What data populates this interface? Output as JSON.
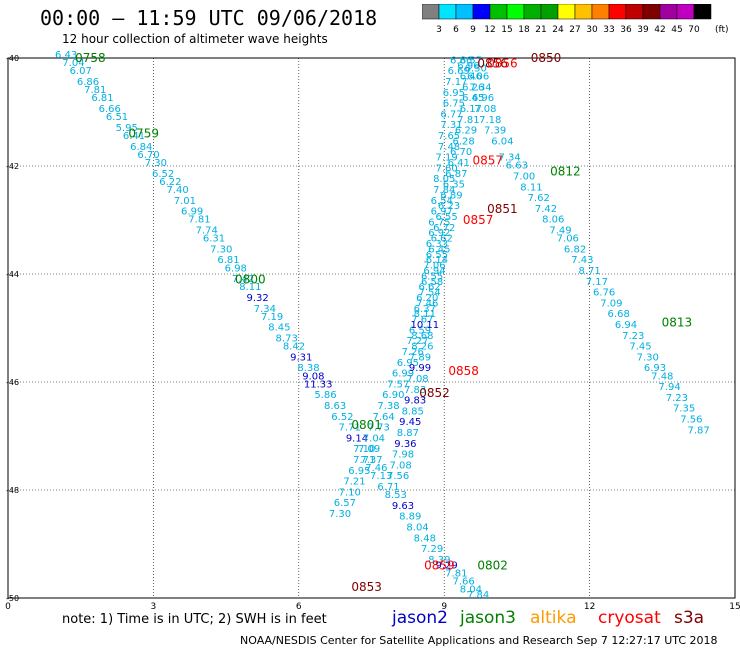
{
  "title": "00:00 – 11:59 UTC 09/06/2018",
  "subtitle": "12 hour collection of altimeter wave heights",
  "note": "note: 1) Time is in UTC; 2) SWH is in feet",
  "credit": "NOAA/NESDIS Center for Satellite Applications and Research   Sep  7 12:27:17 UTC 2018",
  "satellites": [
    {
      "name": "jason2",
      "color": "#0000cc"
    },
    {
      "name": "jason3",
      "color": "#008000"
    },
    {
      "name": "altika",
      "color": "#ff9900"
    },
    {
      "name": "cryosat",
      "color": "#ff0000"
    },
    {
      "name": "s3a",
      "color": "#800000"
    }
  ],
  "legend": {
    "unit": "(ft)",
    "ticks": [
      "3",
      "6",
      "9",
      "12",
      "15",
      "18",
      "21",
      "24",
      "27",
      "30",
      "33",
      "36",
      "39",
      "42",
      "45",
      "70"
    ],
    "colors": [
      "#808080",
      "#00e5ff",
      "#00c0ff",
      "#0000ff",
      "#00c000",
      "#00ff00",
      "#00b000",
      "#00a000",
      "#ffff00",
      "#ffc000",
      "#ff8000",
      "#ff0000",
      "#c00000",
      "#800000",
      "#a000a0",
      "#c000c0",
      "#000000"
    ]
  },
  "axes": {
    "x_ticks": [
      "0",
      "3",
      "6",
      "9",
      "12",
      "15"
    ],
    "y_ticks": [
      "-40",
      "-42",
      "-44",
      "-46",
      "-48",
      "-50"
    ],
    "xlim": [
      0,
      15
    ],
    "ylim": [
      -50,
      -40
    ]
  },
  "time_labels": [
    {
      "text": "0758",
      "sat": "jason3",
      "lon": 1.7,
      "lat": -40.0
    },
    {
      "text": "0759",
      "sat": "jason3",
      "lon": 2.8,
      "lat": -41.4
    },
    {
      "text": "0800",
      "sat": "jason3",
      "lon": 5.0,
      "lat": -44.1
    },
    {
      "text": "0801",
      "sat": "jason3",
      "lon": 7.4,
      "lat": -46.8
    },
    {
      "text": "0802",
      "sat": "jason3",
      "lon": 10.0,
      "lat": -49.4
    },
    {
      "text": "0812",
      "sat": "jason3",
      "lon": 11.5,
      "lat": -42.1
    },
    {
      "text": "0813",
      "sat": "jason3",
      "lon": 13.8,
      "lat": -44.9
    },
    {
      "text": "0850",
      "sat": "s3a",
      "lon": 11.1,
      "lat": -40.0
    },
    {
      "text": "0856",
      "sat": "s3a",
      "lon": 10.0,
      "lat": -40.1
    },
    {
      "text": "0851",
      "sat": "s3a",
      "lon": 10.2,
      "lat": -42.8
    },
    {
      "text": "0852",
      "sat": "s3a",
      "lon": 8.8,
      "lat": -46.2
    },
    {
      "text": "0853",
      "sat": "s3a",
      "lon": 7.4,
      "lat": -49.8
    },
    {
      "text": "0856",
      "sat": "cryosat",
      "lon": 10.2,
      "lat": -40.1
    },
    {
      "text": "0857",
      "sat": "cryosat",
      "lon": 9.9,
      "lat": -41.9
    },
    {
      "text": "0857",
      "sat": "cryosat",
      "lon": 9.7,
      "lat": -43.0
    },
    {
      "text": "0858",
      "sat": "cryosat",
      "lon": 9.4,
      "lat": -45.8
    },
    {
      "text": "0859",
      "sat": "cryosat",
      "lon": 8.9,
      "lat": -49.4
    }
  ],
  "observations": [
    {
      "sat": "jason3",
      "points": [
        {
          "lon": 1.2,
          "lat": -40.0,
          "v": "6.43"
        },
        {
          "lon": 1.35,
          "lat": -40.15,
          "v": "7.04"
        },
        {
          "lon": 1.5,
          "lat": -40.3,
          "v": "6.07"
        },
        {
          "lon": 1.65,
          "lat": -40.5,
          "v": "6.86"
        },
        {
          "lon": 1.8,
          "lat": -40.65,
          "v": "7.81"
        },
        {
          "lon": 1.95,
          "lat": -40.8,
          "v": "6.81"
        },
        {
          "lon": 2.1,
          "lat": -41.0,
          "v": "6.66"
        },
        {
          "lon": 2.25,
          "lat": -41.15,
          "v": "6.51"
        },
        {
          "lon": 2.45,
          "lat": -41.35,
          "v": "5.95"
        },
        {
          "lon": 2.6,
          "lat": -41.5,
          "v": "6.41"
        },
        {
          "lon": 2.75,
          "lat": -41.7,
          "v": "6.84"
        },
        {
          "lon": 2.9,
          "lat": -41.85,
          "v": "6.70"
        },
        {
          "lon": 3.05,
          "lat": -42.0,
          "v": "7.30"
        },
        {
          "lon": 3.2,
          "lat": -42.2,
          "v": "6.52"
        },
        {
          "lon": 3.35,
          "lat": -42.35,
          "v": "6.22"
        },
        {
          "lon": 3.5,
          "lat": -42.5,
          "v": "7.40"
        },
        {
          "lon": 3.65,
          "lat": -42.7,
          "v": "7.01"
        },
        {
          "lon": 3.8,
          "lat": -42.9,
          "v": "6.99"
        },
        {
          "lon": 3.95,
          "lat": -43.05,
          "v": "7.81"
        },
        {
          "lon": 4.1,
          "lat": -43.25,
          "v": "7.74"
        },
        {
          "lon": 4.25,
          "lat": -43.4,
          "v": "6.31"
        },
        {
          "lon": 4.4,
          "lat": -43.6,
          "v": "7.30"
        },
        {
          "lon": 4.55,
          "lat": -43.8,
          "v": "6.81"
        },
        {
          "lon": 4.7,
          "lat": -43.95,
          "v": "6.98"
        },
        {
          "lon": 4.85,
          "lat": -44.15,
          "v": "7.42"
        },
        {
          "lon": 5.0,
          "lat": -44.3,
          "v": "8.11"
        },
        {
          "lon": 5.15,
          "lat": -44.5,
          "v": "9.32"
        },
        {
          "lon": 5.3,
          "lat": -44.7,
          "v": "7.34"
        },
        {
          "lon": 5.45,
          "lat": -44.85,
          "v": "7.19"
        },
        {
          "lon": 5.6,
          "lat": -45.05,
          "v": "8.45"
        },
        {
          "lon": 5.75,
          "lat": -45.25,
          "v": "8.73"
        },
        {
          "lon": 5.9,
          "lat": -45.4,
          "v": "8.42"
        },
        {
          "lon": 6.05,
          "lat": -45.6,
          "v": "9.31"
        },
        {
          "lon": 6.2,
          "lat": -45.8,
          "v": "8.38"
        },
        {
          "lon": 6.3,
          "lat": -45.95,
          "v": "9.08"
        },
        {
          "lon": 6.4,
          "lat": -46.1,
          "v": "11.33"
        },
        {
          "lon": 6.55,
          "lat": -46.3,
          "v": "5.86"
        },
        {
          "lon": 6.75,
          "lat": -46.5,
          "v": "8.63"
        },
        {
          "lon": 6.9,
          "lat": -46.7,
          "v": "6.52"
        },
        {
          "lon": 7.05,
          "lat": -46.9,
          "v": "7.71"
        },
        {
          "lon": 7.2,
          "lat": -47.1,
          "v": "9.14"
        },
        {
          "lon": 7.35,
          "lat": -47.3,
          "v": "7.10"
        },
        {
          "lon": 7.5,
          "lat": -47.5,
          "v": "7.37"
        },
        {
          "lon": 7.6,
          "lat": -47.65,
          "v": "7.46"
        },
        {
          "lon": 7.7,
          "lat": -47.8,
          "v": "7.13"
        },
        {
          "lon": 7.85,
          "lat": -48.0,
          "v": "6.71"
        },
        {
          "lon": 8.0,
          "lat": -48.15,
          "v": "8.53"
        },
        {
          "lon": 8.15,
          "lat": -48.35,
          "v": "9.63"
        },
        {
          "lon": 8.3,
          "lat": -48.55,
          "v": "8.89"
        },
        {
          "lon": 8.45,
          "lat": -48.75,
          "v": "8.04"
        },
        {
          "lon": 8.6,
          "lat": -48.95,
          "v": "8.48"
        },
        {
          "lon": 8.75,
          "lat": -49.15,
          "v": "7.29"
        },
        {
          "lon": 8.9,
          "lat": -49.35,
          "v": "8.39"
        },
        {
          "lon": 9.05,
          "lat": -49.45,
          "v": "9.29"
        },
        {
          "lon": 9.25,
          "lat": -49.6,
          "v": "7.81"
        },
        {
          "lon": 9.4,
          "lat": -49.75,
          "v": "7.66"
        },
        {
          "lon": 9.55,
          "lat": -49.9,
          "v": "8.04"
        },
        {
          "lon": 9.7,
          "lat": -50.0,
          "v": "7.84"
        }
      ]
    },
    {
      "sat": "jason3",
      "points": [
        {
          "lon": 9.55,
          "lat": -40.1,
          "v": "6.57"
        },
        {
          "lon": 9.65,
          "lat": -40.25,
          "v": "6.50"
        },
        {
          "lon": 9.7,
          "lat": -40.4,
          "v": "6.06"
        },
        {
          "lon": 9.75,
          "lat": -40.6,
          "v": "7.34"
        },
        {
          "lon": 9.8,
          "lat": -40.8,
          "v": "6.96"
        },
        {
          "lon": 9.85,
          "lat": -41.0,
          "v": "7.08"
        },
        {
          "lon": 9.95,
          "lat": -41.2,
          "v": "7.18"
        },
        {
          "lon": 10.05,
          "lat": -41.4,
          "v": "7.39"
        },
        {
          "lon": 10.2,
          "lat": -41.6,
          "v": "6.04"
        },
        {
          "lon": 10.35,
          "lat": -41.9,
          "v": "7.34"
        },
        {
          "lon": 10.5,
          "lat": -42.05,
          "v": "6.63"
        },
        {
          "lon": 10.65,
          "lat": -42.25,
          "v": "7.00"
        },
        {
          "lon": 10.8,
          "lat": -42.45,
          "v": "8.11"
        },
        {
          "lon": 10.95,
          "lat": -42.65,
          "v": "7.62"
        },
        {
          "lon": 11.1,
          "lat": -42.85,
          "v": "7.42"
        },
        {
          "lon": 11.25,
          "lat": -43.05,
          "v": "8.06"
        },
        {
          "lon": 11.4,
          "lat": -43.25,
          "v": "7.49"
        },
        {
          "lon": 11.55,
          "lat": -43.4,
          "v": "7.06"
        },
        {
          "lon": 11.7,
          "lat": -43.6,
          "v": "6.82"
        },
        {
          "lon": 11.85,
          "lat": -43.8,
          "v": "7.43"
        },
        {
          "lon": 12.0,
          "lat": -44.0,
          "v": "8.71"
        },
        {
          "lon": 12.15,
          "lat": -44.2,
          "v": "7.17"
        },
        {
          "lon": 12.3,
          "lat": -44.4,
          "v": "6.76"
        },
        {
          "lon": 12.45,
          "lat": -44.6,
          "v": "7.09"
        },
        {
          "lon": 12.6,
          "lat": -44.8,
          "v": "6.68"
        },
        {
          "lon": 12.75,
          "lat": -45.0,
          "v": "6.94"
        },
        {
          "lon": 12.9,
          "lat": -45.2,
          "v": "7.23"
        },
        {
          "lon": 13.05,
          "lat": -45.4,
          "v": "7.45"
        },
        {
          "lon": 13.2,
          "lat": -45.6,
          "v": "7.30"
        },
        {
          "lon": 13.35,
          "lat": -45.8,
          "v": "6.93"
        },
        {
          "lon": 13.5,
          "lat": -45.95,
          "v": "7.48"
        },
        {
          "lon": 13.65,
          "lat": -46.15,
          "v": "7.94"
        },
        {
          "lon": 13.8,
          "lat": -46.35,
          "v": "7.23"
        },
        {
          "lon": 13.95,
          "lat": -46.55,
          "v": "7.35"
        },
        {
          "lon": 14.1,
          "lat": -46.75,
          "v": "7.56"
        },
        {
          "lon": 14.25,
          "lat": -46.95,
          "v": "7.87"
        }
      ]
    },
    {
      "sat": "s3a",
      "points": [
        {
          "lon": 9.35,
          "lat": -40.1,
          "v": "6.86"
        },
        {
          "lon": 9.3,
          "lat": -40.3,
          "v": "6.69"
        },
        {
          "lon": 9.25,
          "lat": -40.5,
          "v": "7.17"
        },
        {
          "lon": 9.2,
          "lat": -40.7,
          "v": "6.95"
        },
        {
          "lon": 9.2,
          "lat": -40.9,
          "v": "6.75"
        },
        {
          "lon": 9.15,
          "lat": -41.1,
          "v": "6.77"
        },
        {
          "lon": 9.15,
          "lat": -41.3,
          "v": "7.31"
        },
        {
          "lon": 9.1,
          "lat": -41.5,
          "v": "7.65"
        },
        {
          "lon": 9.1,
          "lat": -41.7,
          "v": "7.48"
        },
        {
          "lon": 9.05,
          "lat": -41.9,
          "v": "7.19"
        },
        {
          "lon": 9.05,
          "lat": -42.1,
          "v": "7.60"
        },
        {
          "lon": 9.0,
          "lat": -42.3,
          "v": "8.05"
        },
        {
          "lon": 9.0,
          "lat": -42.5,
          "v": "7.84"
        },
        {
          "lon": 8.95,
          "lat": -42.7,
          "v": "6.54"
        },
        {
          "lon": 8.95,
          "lat": -42.9,
          "v": "6.97"
        },
        {
          "lon": 8.9,
          "lat": -43.1,
          "v": "6.75"
        },
        {
          "lon": 8.9,
          "lat": -43.3,
          "v": "6.92"
        },
        {
          "lon": 8.85,
          "lat": -43.5,
          "v": "6.33"
        },
        {
          "lon": 8.85,
          "lat": -43.7,
          "v": "6.55"
        },
        {
          "lon": 8.8,
          "lat": -43.9,
          "v": "7.06"
        },
        {
          "lon": 8.75,
          "lat": -44.1,
          "v": "6.55"
        },
        {
          "lon": 8.7,
          "lat": -44.3,
          "v": "6.62"
        },
        {
          "lon": 8.65,
          "lat": -44.5,
          "v": "6.20"
        },
        {
          "lon": 8.6,
          "lat": -44.7,
          "v": "6.37"
        },
        {
          "lon": 8.55,
          "lat": -44.9,
          "v": "7.67"
        },
        {
          "lon": 8.5,
          "lat": -45.1,
          "v": "6.59"
        },
        {
          "lon": 8.45,
          "lat": -45.3,
          "v": "7.27"
        },
        {
          "lon": 8.35,
          "lat": -45.5,
          "v": "7.26"
        },
        {
          "lon": 8.25,
          "lat": -45.7,
          "v": "6.95"
        },
        {
          "lon": 8.15,
          "lat": -45.9,
          "v": "6.99"
        },
        {
          "lon": 8.05,
          "lat": -46.1,
          "v": "7.57"
        },
        {
          "lon": 7.95,
          "lat": -46.3,
          "v": "6.90"
        },
        {
          "lon": 7.85,
          "lat": -46.5,
          "v": "7.38"
        },
        {
          "lon": 7.75,
          "lat": -46.7,
          "v": "7.64"
        },
        {
          "lon": 7.65,
          "lat": -46.9,
          "v": "7.73"
        },
        {
          "lon": 7.55,
          "lat": -47.1,
          "v": "7.04"
        },
        {
          "lon": 7.45,
          "lat": -47.3,
          "v": "7.09"
        },
        {
          "lon": 7.35,
          "lat": -47.5,
          "v": "7.71"
        },
        {
          "lon": 7.25,
          "lat": -47.7,
          "v": "6.95"
        },
        {
          "lon": 7.15,
          "lat": -47.9,
          "v": "7.21"
        },
        {
          "lon": 7.05,
          "lat": -48.1,
          "v": "7.10"
        },
        {
          "lon": 6.95,
          "lat": -48.3,
          "v": "6.57"
        },
        {
          "lon": 6.85,
          "lat": -48.5,
          "v": "7.30"
        }
      ]
    },
    {
      "sat": "cryosat",
      "points": [
        {
          "lon": 9.5,
          "lat": -40.2,
          "v": "6.96"
        },
        {
          "lon": 9.55,
          "lat": -40.4,
          "v": "6.46"
        },
        {
          "lon": 9.6,
          "lat": -40.6,
          "v": "6.26"
        },
        {
          "lon": 9.6,
          "lat": -40.8,
          "v": "6.45"
        },
        {
          "lon": 9.55,
          "lat": -41.0,
          "v": "6.17"
        },
        {
          "lon": 9.5,
          "lat": -41.2,
          "v": "7.81"
        },
        {
          "lon": 9.45,
          "lat": -41.4,
          "v": "6.29"
        },
        {
          "lon": 9.4,
          "lat": -41.6,
          "v": "6.28"
        },
        {
          "lon": 9.35,
          "lat": -41.8,
          "v": "6.70"
        },
        {
          "lon": 9.3,
          "lat": -42.0,
          "v": "6.41"
        },
        {
          "lon": 9.25,
          "lat": -42.2,
          "v": "6.87"
        },
        {
          "lon": 9.2,
          "lat": -42.4,
          "v": "6.35"
        },
        {
          "lon": 9.15,
          "lat": -42.6,
          "v": "6.89"
        },
        {
          "lon": 9.1,
          "lat": -42.8,
          "v": "6.23"
        },
        {
          "lon": 9.05,
          "lat": -43.0,
          "v": "6.55"
        },
        {
          "lon": 9.0,
          "lat": -43.2,
          "v": "6.72"
        },
        {
          "lon": 8.95,
          "lat": -43.4,
          "v": "6.62"
        },
        {
          "lon": 8.9,
          "lat": -43.6,
          "v": "6.45"
        },
        {
          "lon": 8.85,
          "lat": -43.8,
          "v": "6.14"
        },
        {
          "lon": 8.8,
          "lat": -44.0,
          "v": "6.94"
        },
        {
          "lon": 8.75,
          "lat": -44.2,
          "v": "6.58"
        },
        {
          "lon": 8.7,
          "lat": -44.4,
          "v": "7.54"
        },
        {
          "lon": 8.65,
          "lat": -44.6,
          "v": "7.46"
        },
        {
          "lon": 8.6,
          "lat": -44.8,
          "v": "8.11"
        },
        {
          "lon": 8.6,
          "lat": -45.0,
          "v": "10.11"
        },
        {
          "lon": 8.55,
          "lat": -45.2,
          "v": "8.68"
        },
        {
          "lon": 8.55,
          "lat": -45.4,
          "v": "8.26"
        },
        {
          "lon": 8.5,
          "lat": -45.6,
          "v": "7.89"
        },
        {
          "lon": 8.5,
          "lat": -45.8,
          "v": "9.99"
        },
        {
          "lon": 8.45,
          "lat": -46.0,
          "v": "7.08"
        },
        {
          "lon": 8.4,
          "lat": -46.2,
          "v": "7.83"
        },
        {
          "lon": 8.4,
          "lat": -46.4,
          "v": "9.83"
        },
        {
          "lon": 8.35,
          "lat": -46.6,
          "v": "8.85"
        },
        {
          "lon": 8.3,
          "lat": -46.8,
          "v": "9.45"
        },
        {
          "lon": 8.25,
          "lat": -47.0,
          "v": "8.87"
        },
        {
          "lon": 8.2,
          "lat": -47.2,
          "v": "9.36"
        },
        {
          "lon": 8.15,
          "lat": -47.4,
          "v": "7.98"
        },
        {
          "lon": 8.1,
          "lat": -47.6,
          "v": "7.08"
        },
        {
          "lon": 8.05,
          "lat": -47.8,
          "v": "7.56"
        }
      ]
    }
  ]
}
